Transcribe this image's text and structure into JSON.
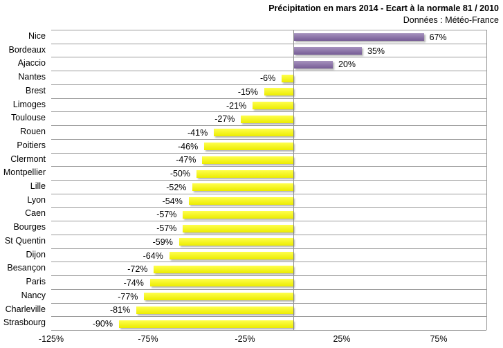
{
  "header": {
    "title": "Précipitation en mars 2014 - Ecart à la normale 81 / 2010",
    "subtitle": "Données : Météo-France"
  },
  "chart_data": {
    "type": "bar",
    "orientation": "horizontal",
    "title": "Précipitation en mars 2014 - Ecart à la normale 81 / 2010",
    "subtitle": "Données : Météo-France",
    "categories": [
      "Nice",
      "Bordeaux",
      "Ajaccio",
      "Nantes",
      "Brest",
      "Limoges",
      "Toulouse",
      "Rouen",
      "Poitiers",
      "Clermont",
      "Montpellier",
      "Lille",
      "Lyon",
      "Caen",
      "Bourges",
      "St Quentin",
      "Dijon",
      "Besançon",
      "Paris",
      "Nancy",
      "Charleville",
      "Strasbourg"
    ],
    "values": [
      67,
      35,
      20,
      -6,
      -15,
      -21,
      -27,
      -41,
      -46,
      -47,
      -50,
      -52,
      -54,
      -57,
      -57,
      -59,
      -64,
      -72,
      -74,
      -77,
      -81,
      -90
    ],
    "data_labels": [
      "67%",
      "35%",
      "20%",
      "-6%",
      "-15%",
      "-21%",
      "-27%",
      "-41%",
      "-46%",
      "-47%",
      "-50%",
      "-52%",
      "-54%",
      "-57%",
      "-57%",
      "-59%",
      "-64%",
      "-72%",
      "-74%",
      "-77%",
      "-81%",
      "-90%"
    ],
    "xlim": [
      -125,
      100
    ],
    "xtick_labels": [
      "-125%",
      "-75%",
      "-25%",
      "25%",
      "75%"
    ],
    "xtick_values": [
      -125,
      -75,
      -25,
      25,
      75
    ],
    "grid": "horizontal row separator lines, vertical zero axis line",
    "legend": "none",
    "colors": {
      "positive_bar": "#8064A2",
      "negative_bar": "#FFFF00",
      "gridline": "#9a9a9a",
      "zero_axis": "#8c8c8c",
      "text": "#000000",
      "background": "#ffffff"
    }
  }
}
